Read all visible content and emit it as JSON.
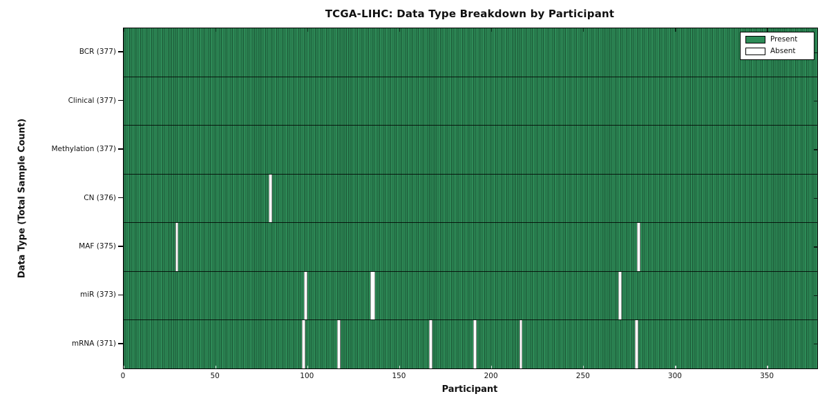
{
  "chart_data": {
    "type": "heatmap",
    "title": "TCGA-LIHC: Data Type Breakdown by Participant",
    "xlabel": "Participant",
    "ylabel": "Data Type (Total Sample Count)",
    "x_range": [
      0,
      377
    ],
    "n_participants": 377,
    "x_ticks": [
      0,
      50,
      100,
      150,
      200,
      250,
      300,
      350
    ],
    "legend_labels": [
      "Present",
      "Absent"
    ],
    "legend_position": "upper right",
    "colors": {
      "present": "#2e8b57",
      "present_edge": "#1a5434",
      "absent": "#ffffff",
      "axis": "#000000"
    },
    "rows": [
      {
        "label": "BCR (377)",
        "data_type": "BCR",
        "total": 377,
        "absent_participants": []
      },
      {
        "label": "Clinical (377)",
        "data_type": "Clinical",
        "total": 377,
        "absent_participants": []
      },
      {
        "label": "Methylation (377)",
        "data_type": "Methylation",
        "total": 377,
        "absent_participants": []
      },
      {
        "label": "CN (376)",
        "data_type": "CN",
        "total": 376,
        "absent_participants": [
          79
        ]
      },
      {
        "label": "MAF (375)",
        "data_type": "MAF",
        "total": 375,
        "absent_participants": [
          28,
          279
        ]
      },
      {
        "label": "miR (373)",
        "data_type": "miR",
        "total": 373,
        "absent_participants": [
          98,
          134,
          135,
          269
        ]
      },
      {
        "label": "mRNA (371)",
        "data_type": "mRNA",
        "total": 371,
        "absent_participants": [
          97,
          116,
          166,
          190,
          215,
          278
        ]
      }
    ]
  }
}
